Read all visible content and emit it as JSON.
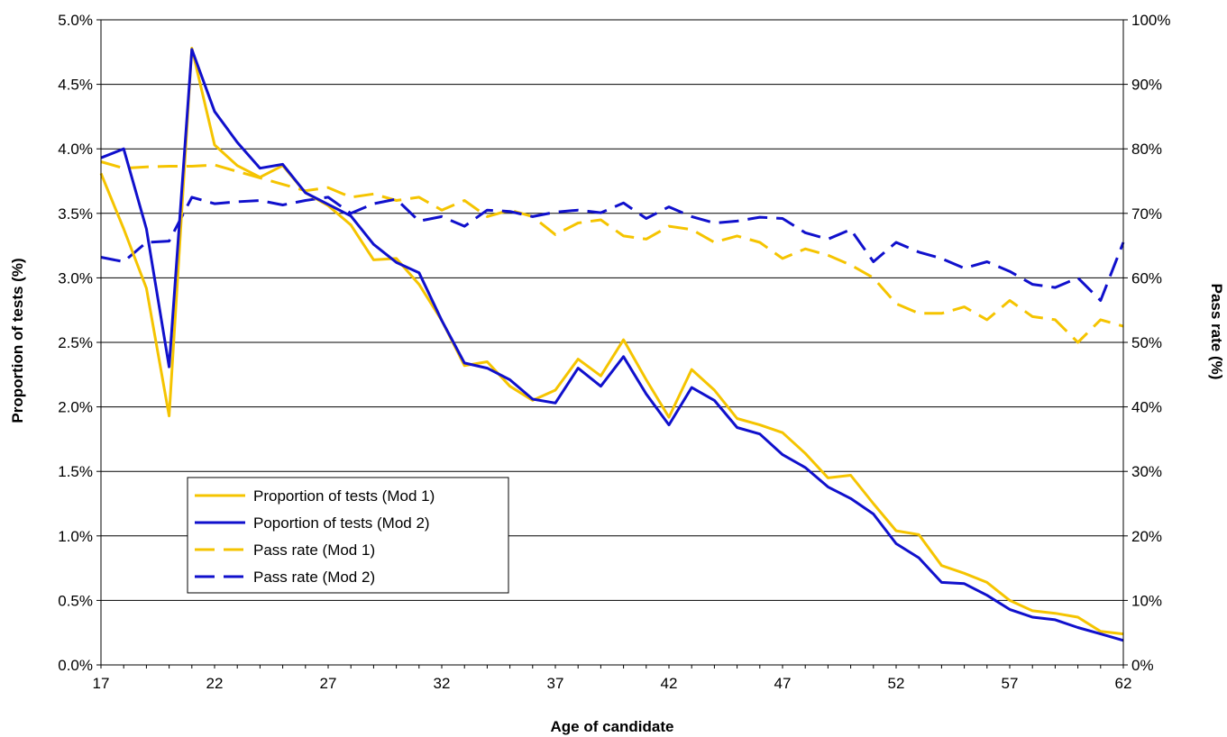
{
  "chart_data": {
    "type": "line",
    "xlabel": "Age of candidate",
    "ylabel": "Proportion of tests (%)",
    "y2label": "Pass rate (%)",
    "xlim": [
      17,
      62
    ],
    "ylim": [
      0,
      5
    ],
    "y2lim": [
      0,
      100
    ],
    "x_ticks": [
      "17",
      "22",
      "27",
      "32",
      "37",
      "42",
      "47",
      "52",
      "57",
      "62"
    ],
    "y_ticks": [
      "0.0%",
      "0.5%",
      "1.0%",
      "1.5%",
      "2.0%",
      "2.5%",
      "3.0%",
      "3.5%",
      "4.0%",
      "4.5%",
      "5.0%"
    ],
    "y2_ticks": [
      "0%",
      "10%",
      "20%",
      "30%",
      "40%",
      "50%",
      "60%",
      "70%",
      "80%",
      "90%",
      "100%"
    ],
    "grid": true,
    "legend_position": "lower-left",
    "x": [
      17,
      18,
      19,
      20,
      21,
      22,
      23,
      24,
      25,
      26,
      27,
      28,
      29,
      30,
      31,
      32,
      33,
      34,
      35,
      36,
      37,
      38,
      39,
      40,
      41,
      42,
      43,
      44,
      45,
      46,
      47,
      48,
      49,
      50,
      51,
      52,
      53,
      54,
      55,
      56,
      57,
      58,
      59,
      60,
      61,
      62
    ],
    "series": [
      {
        "name": "Proportion of tests (Mod 1)",
        "axis": "left",
        "color": "#F5C400",
        "dash": "solid",
        "values": [
          3.81,
          3.38,
          2.92,
          1.93,
          4.78,
          4.03,
          3.87,
          3.78,
          3.87,
          3.66,
          3.56,
          3.41,
          3.14,
          3.15,
          2.95,
          2.67,
          2.32,
          2.35,
          2.16,
          2.05,
          2.13,
          2.37,
          2.24,
          2.52,
          2.21,
          1.92,
          2.29,
          2.13,
          1.91,
          1.86,
          1.8,
          1.64,
          1.45,
          1.47,
          1.25,
          1.04,
          1.01,
          0.77,
          0.71,
          0.64,
          0.5,
          0.42,
          0.4,
          0.37,
          0.26,
          0.24
        ]
      },
      {
        "name": "Poportion of tests (Mod 2)",
        "axis": "left",
        "color": "#1010CC",
        "dash": "solid",
        "values": [
          3.93,
          4.0,
          3.38,
          2.31,
          4.77,
          4.29,
          4.05,
          3.85,
          3.88,
          3.66,
          3.57,
          3.48,
          3.26,
          3.12,
          3.04,
          2.67,
          2.34,
          2.3,
          2.21,
          2.06,
          2.03,
          2.3,
          2.16,
          2.39,
          2.1,
          1.86,
          2.15,
          2.05,
          1.84,
          1.79,
          1.63,
          1.53,
          1.38,
          1.29,
          1.17,
          0.94,
          0.83,
          0.64,
          0.63,
          0.54,
          0.43,
          0.37,
          0.35,
          0.29,
          0.24,
          0.19
        ]
      },
      {
        "name": "Pass rate (Mod 1)",
        "axis": "right",
        "color": "#F5C400",
        "dash": "dashed",
        "values": [
          78.0,
          77.0,
          77.2,
          77.3,
          77.3,
          77.5,
          76.5,
          75.5,
          74.5,
          73.5,
          74.0,
          72.5,
          73.0,
          72.0,
          72.5,
          70.5,
          72.0,
          69.5,
          70.5,
          69.5,
          66.7,
          68.5,
          69.0,
          66.5,
          66.0,
          68.0,
          67.5,
          65.5,
          66.5,
          65.5,
          63.0,
          64.5,
          63.5,
          62.0,
          60.0,
          56.0,
          54.5,
          54.5,
          55.5,
          53.5,
          56.5,
          54.0,
          53.5,
          50.0,
          53.5,
          52.5
        ]
      },
      {
        "name": "Pass rate (Mod 2)",
        "axis": "right",
        "color": "#1010CC",
        "dash": "dashed",
        "values": [
          63.2,
          62.5,
          65.5,
          65.7,
          72.5,
          71.5,
          71.8,
          72.0,
          71.3,
          72.0,
          72.5,
          70.0,
          71.5,
          72.2,
          68.8,
          69.5,
          68.0,
          70.5,
          70.3,
          69.5,
          70.2,
          70.5,
          70.1,
          71.6,
          69.2,
          71.0,
          69.5,
          68.5,
          68.8,
          69.4,
          69.2,
          67.0,
          66.0,
          67.5,
          62.5,
          65.5,
          64.0,
          63.0,
          61.5,
          62.5,
          61.0,
          59.0,
          58.5,
          60.0,
          56.5,
          65.5
        ]
      }
    ]
  }
}
